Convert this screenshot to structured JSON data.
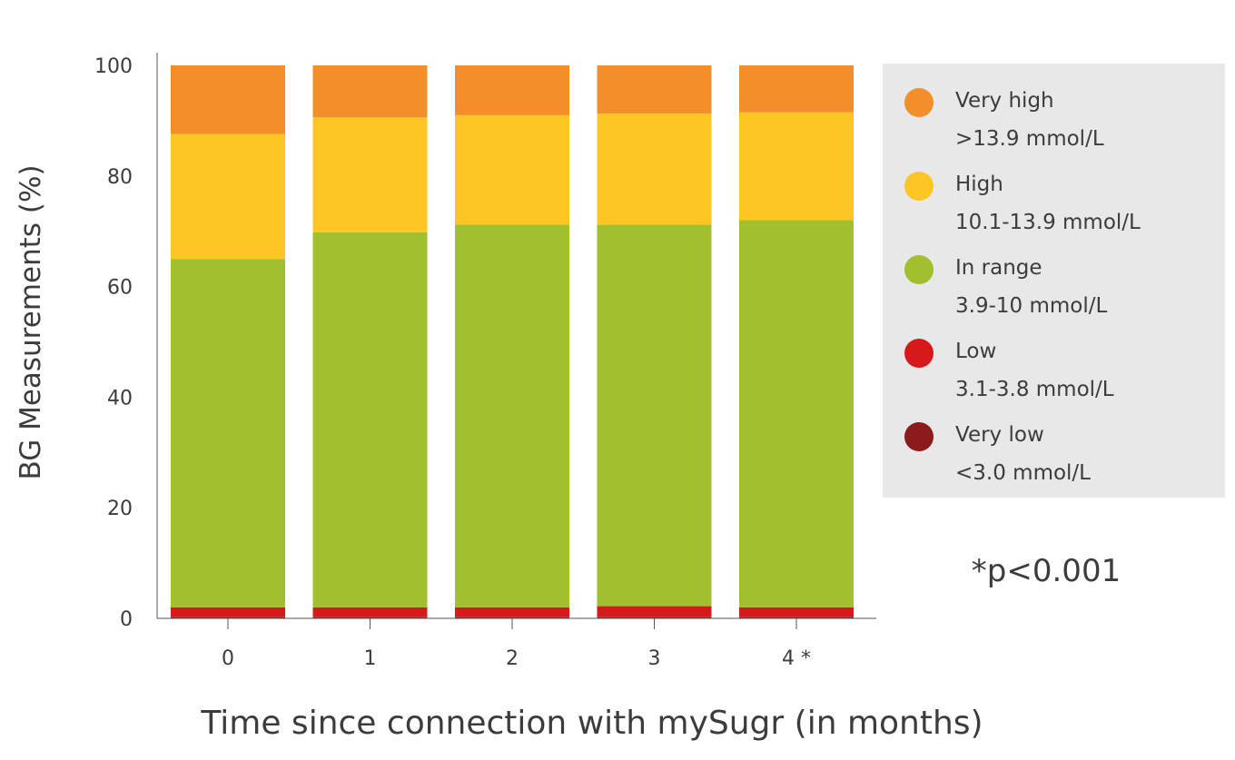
{
  "chart_data": {
    "type": "bar",
    "stacked": true,
    "categories": [
      "0",
      "1",
      "2",
      "3",
      "4 *"
    ],
    "ylabel": "BG Measurements (%)",
    "xlabel": "Time since connection with mySugr (in months)",
    "ylim": [
      0,
      100
    ],
    "yticks": [
      0,
      20,
      40,
      60,
      80,
      100
    ],
    "grid": false,
    "legend_position": "right",
    "series": [
      {
        "key": "very_low",
        "values": [
          0.2,
          0.2,
          0.2,
          0.2,
          0.2
        ],
        "color": "#8b1a1a"
      },
      {
        "key": "low",
        "values": [
          1.8,
          1.8,
          1.8,
          2.0,
          1.8
        ],
        "color": "#d7191c"
      },
      {
        "key": "in_range",
        "values": [
          63.0,
          67.8,
          69.2,
          69.0,
          70.0
        ],
        "color": "#a2bf2e"
      },
      {
        "key": "high",
        "values": [
          22.6,
          20.8,
          19.8,
          20.1,
          19.5
        ],
        "color": "#fdc624"
      },
      {
        "key": "very_high",
        "values": [
          12.4,
          9.4,
          9.0,
          8.7,
          8.5
        ],
        "color": "#f28f2a"
      }
    ],
    "legend": [
      {
        "key": "very_high",
        "label": "Very high",
        "range": ">13.9 mmol/L",
        "color": "#f28f2a"
      },
      {
        "key": "high",
        "label": "High",
        "range": "10.1-13.9 mmol/L",
        "color": "#fdc624"
      },
      {
        "key": "in_range",
        "label": "In range",
        "range": "3.9-10 mmol/L",
        "color": "#a2bf2e"
      },
      {
        "key": "low",
        "label": "Low",
        "range": "3.1-3.8 mmol/L",
        "color": "#d7191c"
      },
      {
        "key": "very_low",
        "label": "Very low",
        "range": "<3.0 mmol/L",
        "color": "#8b1a1a"
      }
    ],
    "annotation": "*p<0.001"
  }
}
